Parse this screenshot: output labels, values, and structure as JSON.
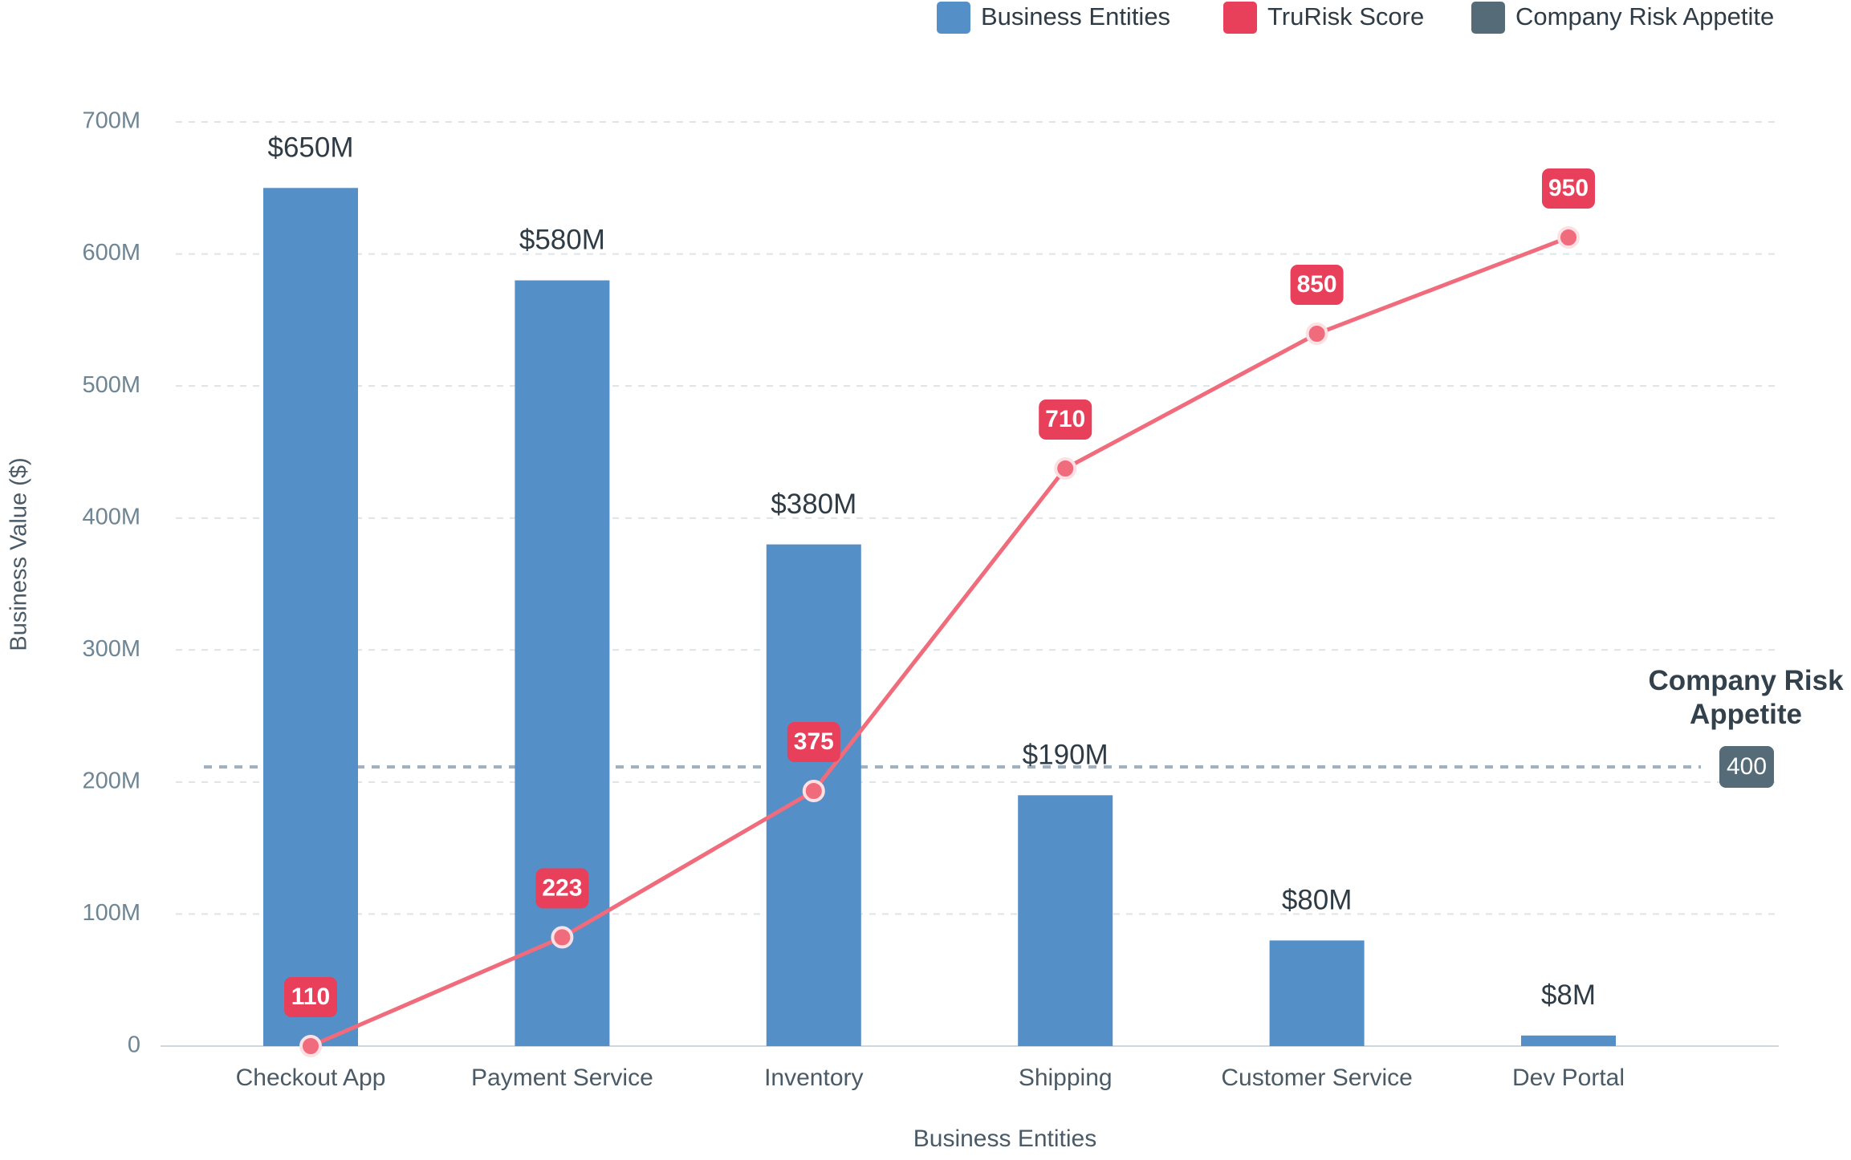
{
  "chart_data": {
    "type": "bar",
    "x_label": "Business Entities",
    "y_label": "Business Value ($)",
    "categories": [
      "Checkout App",
      "Payment Service",
      "Inventory",
      "Shipping",
      "Customer Service",
      "Dev Portal"
    ],
    "series": [
      {
        "name": "Business Entities",
        "type": "bar",
        "color": "#558fc8",
        "values": [
          650,
          580,
          380,
          190,
          80,
          8
        ],
        "value_labels": [
          "$650M",
          "$580M",
          "$380M",
          "$190M",
          "$80M",
          "$8M"
        ]
      },
      {
        "name": "TruRisk Score",
        "type": "line",
        "axis": "y2",
        "color": "#f06b7b",
        "label_color": "#e8405a",
        "values": [
          110,
          223,
          375,
          710,
          850,
          950
        ]
      }
    ],
    "risk_appetite": {
      "name": "Company Risk Appetite",
      "annotation": "Company Risk Appetite",
      "value": 400,
      "axis": "y2",
      "color": "#566b78"
    },
    "ylim": [
      0,
      700
    ],
    "yticks": [
      0,
      {
        "value": 100,
        "label": "100M"
      },
      {
        "value": 200,
        "label": "200M"
      },
      {
        "value": 300,
        "label": "300M"
      },
      {
        "value": 400,
        "label": "400M"
      },
      {
        "value": 500,
        "label": "500M"
      },
      {
        "value": 600,
        "label": "600M"
      },
      {
        "value": 700,
        "label": "700M"
      }
    ],
    "y2lim": [
      110,
      1070
    ],
    "grid": true,
    "legend": "top-right"
  }
}
